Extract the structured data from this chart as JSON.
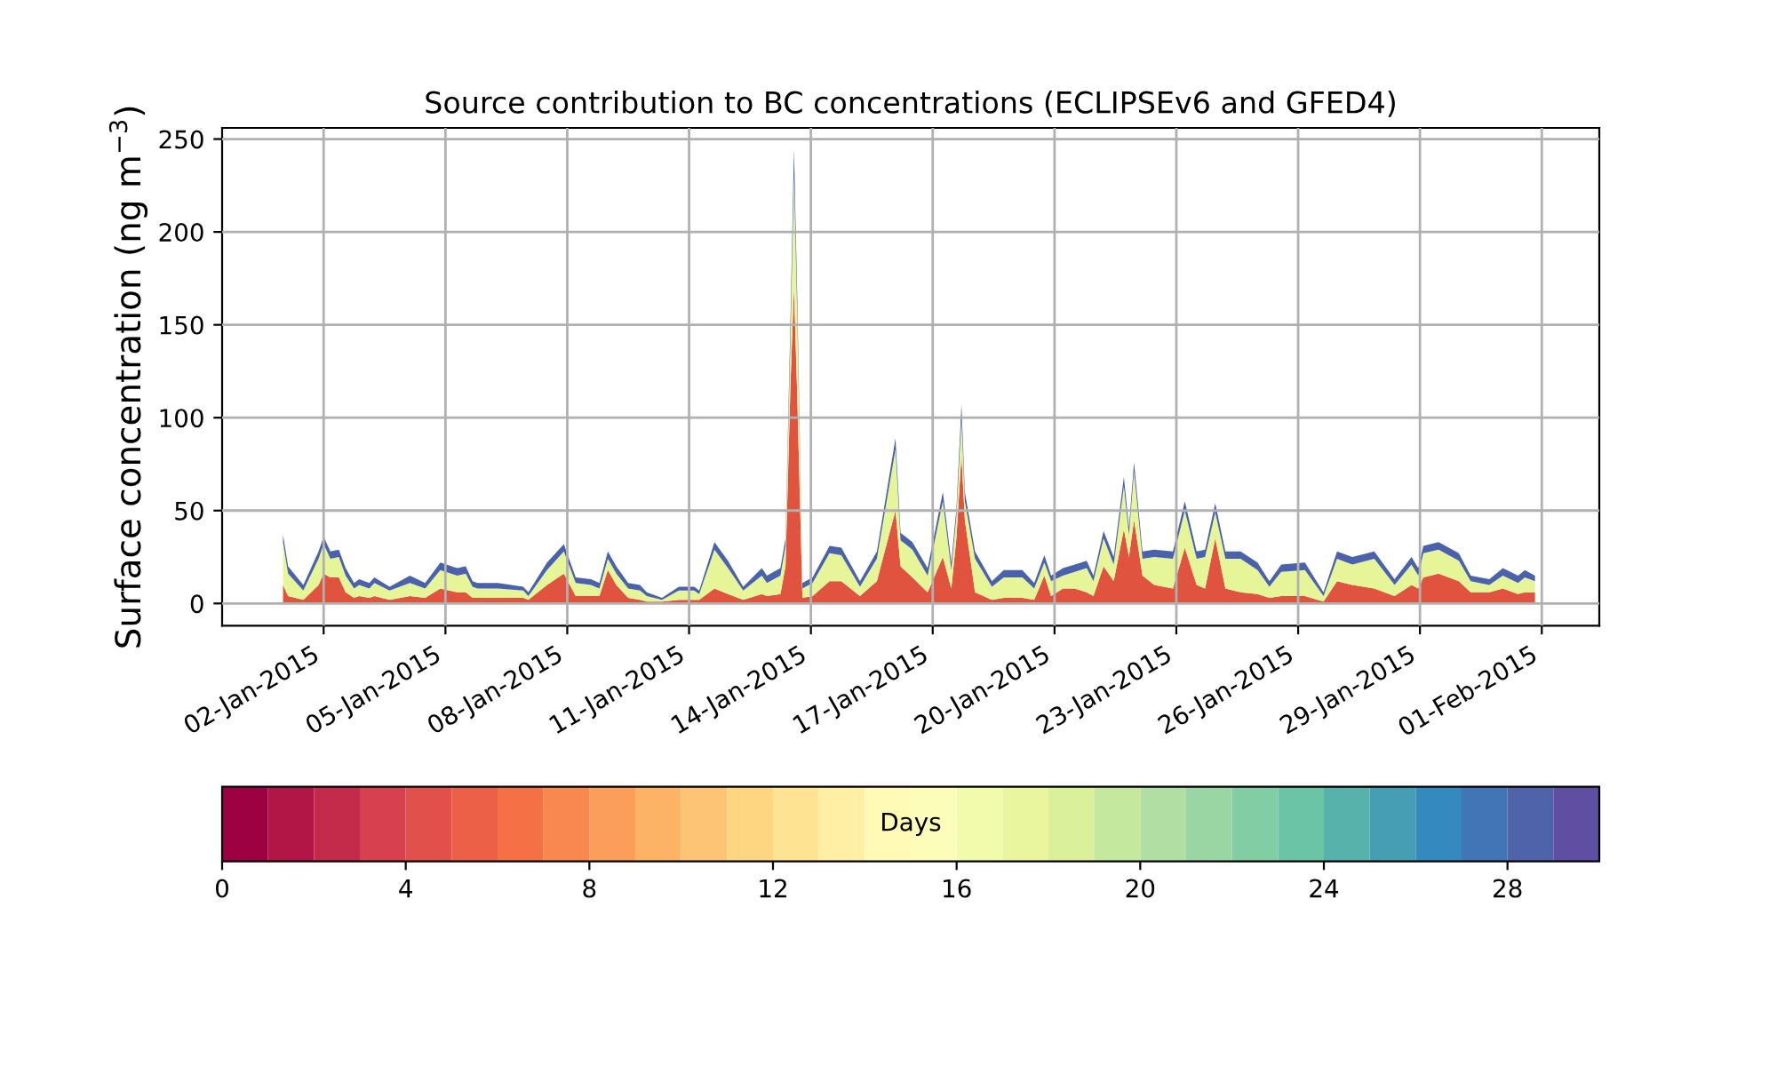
{
  "chart_data": {
    "type": "area",
    "stacked": true,
    "title": "Source contribution to BC concentrations (ECLIPSEv6 and GFED4)",
    "ylabel": "Surface concentration (ng m$^{−3}$)",
    "clabel": "Days",
    "x": [
      "2015-01-01T00:00",
      "2015-01-01T03:00",
      "2015-01-01T12:00",
      "2015-01-01T21:00",
      "2015-01-02T00:00",
      "2015-01-02T04:00",
      "2015-01-02T09:00",
      "2015-01-02T13:00",
      "2015-01-02T18:00",
      "2015-01-02T21:00",
      "2015-01-03T03:00",
      "2015-01-03T06:00",
      "2015-01-03T15:00",
      "2015-01-04T03:00",
      "2015-01-04T12:00",
      "2015-01-04T21:00",
      "2015-01-05T07:00",
      "2015-01-05T12:00",
      "2015-01-05T16:00",
      "2015-01-05T19:00",
      "2015-01-06T07:00",
      "2015-01-06T22:00",
      "2015-01-07T01:00",
      "2015-01-07T12:00",
      "2015-01-07T22:00",
      "2015-01-08T05:00",
      "2015-01-08T14:00",
      "2015-01-08T19:00",
      "2015-01-09T00:00",
      "2015-01-09T05:00",
      "2015-01-09T12:00",
      "2015-01-09T19:00",
      "2015-01-09T23:00",
      "2015-01-10T08:00",
      "2015-01-10T18:00",
      "2015-01-11T03:00",
      "2015-01-11T06:00",
      "2015-01-11T15:00",
      "2015-01-11T23:00",
      "2015-01-12T08:00",
      "2015-01-12T19:00",
      "2015-01-12T22:00",
      "2015-01-13T06:00",
      "2015-01-13T09:00",
      "2015-01-13T12:00",
      "2015-01-13T14:00",
      "2015-01-13T16:00",
      "2015-01-13T19:00",
      "2015-01-14T01:00",
      "2015-01-14T11:00",
      "2015-01-14T18:00",
      "2015-01-15T05:00",
      "2015-01-15T15:00",
      "2015-01-16T02:00",
      "2015-01-16T05:00",
      "2015-01-16T12:00",
      "2015-01-16T21:00",
      "2015-01-17T06:00",
      "2015-01-17T11:00",
      "2015-01-17T14:00",
      "2015-01-17T17:00",
      "2015-01-17T19:00",
      "2015-01-18T01:00",
      "2015-01-18T11:00",
      "2015-01-18T18:00",
      "2015-01-19T05:00",
      "2015-01-19T12:00",
      "2015-01-19T18:00",
      "2015-01-19T22:00",
      "2015-01-20T05:00",
      "2015-01-20T12:00",
      "2015-01-20T19:00",
      "2015-01-20T23:00",
      "2015-01-21T05:00",
      "2015-01-21T11:00",
      "2015-01-21T17:00",
      "2015-01-21T20:00",
      "2015-01-21T23:00",
      "2015-01-22T04:00",
      "2015-01-22T11:00",
      "2015-01-22T22:00",
      "2015-01-23T05:00",
      "2015-01-23T12:00",
      "2015-01-23T17:00",
      "2015-01-23T23:00",
      "2015-01-24T05:00",
      "2015-01-24T14:00",
      "2015-01-25T00:00",
      "2015-01-25T07:00",
      "2015-01-25T14:00",
      "2015-01-26T04:00",
      "2015-01-26T15:00",
      "2015-01-26T23:00",
      "2015-01-27T08:00",
      "2015-01-27T21:00",
      "2015-01-28T09:00",
      "2015-01-28T19:00",
      "2015-01-28T23:00",
      "2015-01-29T02:00",
      "2015-01-29T11:00",
      "2015-01-29T23:00",
      "2015-01-30T06:00",
      "2015-01-30T17:00",
      "2015-01-31T01:00",
      "2015-01-31T10:00",
      "2015-01-31T14:00",
      "2015-01-31T20:00"
    ],
    "series": [
      {
        "color": "#e0533f",
        "values": [
          10,
          4,
          2,
          10,
          16,
          14,
          14,
          6,
          3,
          4,
          3,
          4,
          2,
          4,
          3,
          8,
          6,
          6,
          3,
          3,
          3,
          3,
          2,
          10,
          16,
          4,
          4,
          4,
          18,
          10,
          3,
          2,
          1,
          1,
          2,
          2,
          2,
          8,
          5,
          2,
          5,
          4,
          5,
          20,
          120,
          170,
          110,
          3,
          4,
          12,
          12,
          4,
          12,
          50,
          20,
          14,
          6,
          25,
          8,
          35,
          80,
          45,
          6,
          2,
          3,
          3,
          2,
          15,
          4,
          8,
          8,
          6,
          4,
          20,
          12,
          40,
          25,
          45,
          15,
          10,
          8,
          30,
          10,
          8,
          35,
          8,
          6,
          5,
          3,
          4,
          4,
          1,
          12,
          10,
          8,
          4,
          10,
          8,
          14,
          16,
          12,
          6,
          6,
          8,
          5,
          6,
          6
        ]
      },
      {
        "color": "#e6f598",
        "values": [
          23,
          12,
          5,
          14,
          16,
          10,
          11,
          9,
          5,
          6,
          5,
          7,
          5,
          7,
          5,
          10,
          9,
          10,
          6,
          5,
          5,
          4,
          2,
          8,
          12,
          7,
          6,
          4,
          6,
          6,
          5,
          5,
          3,
          1,
          5,
          5,
          3,
          21,
          14,
          5,
          10,
          7,
          10,
          11,
          26,
          60,
          43,
          5,
          7,
          15,
          14,
          5,
          12,
          33,
          14,
          15,
          9,
          30,
          10,
          12,
          19,
          10,
          18,
          7,
          11,
          11,
          6,
          7,
          8,
          7,
          9,
          13,
          8,
          15,
          9,
          23,
          12,
          26,
          9,
          15,
          16,
          20,
          14,
          17,
          14,
          16,
          18,
          13,
          6,
          13,
          14,
          3,
          12,
          11,
          16,
          6,
          11,
          7,
          13,
          13,
          11,
          6,
          4,
          7,
          6,
          8,
          6
        ]
      },
      {
        "color": "#4a62ab",
        "values": [
          4,
          4,
          3,
          4,
          4,
          4,
          4,
          4,
          3,
          3,
          3,
          3,
          2,
          4,
          3,
          4,
          4,
          4,
          3,
          3,
          3,
          2,
          2,
          4,
          4,
          3,
          3,
          3,
          4,
          4,
          3,
          3,
          2,
          1,
          2,
          2,
          2,
          4,
          4,
          2,
          4,
          4,
          4,
          4,
          10,
          15,
          10,
          3,
          3,
          4,
          4,
          3,
          4,
          6,
          4,
          4,
          4,
          5,
          4,
          4,
          8,
          5,
          4,
          3,
          4,
          4,
          3,
          4,
          3,
          4,
          4,
          4,
          3,
          4,
          4,
          5,
          4,
          5,
          4,
          4,
          4,
          5,
          4,
          4,
          5,
          4,
          4,
          4,
          3,
          4,
          4,
          2,
          4,
          4,
          4,
          3,
          4,
          4,
          4,
          4,
          4,
          3,
          3,
          4,
          4,
          4,
          3
        ]
      }
    ],
    "xlim": [
      "2014-12-30T12:00",
      "2015-02-02T10:00"
    ],
    "xticks": [
      {
        "value": "2015-01-02",
        "label": "02-Jan-2015"
      },
      {
        "value": "2015-01-05",
        "label": "05-Jan-2015"
      },
      {
        "value": "2015-01-08",
        "label": "08-Jan-2015"
      },
      {
        "value": "2015-01-11",
        "label": "11-Jan-2015"
      },
      {
        "value": "2015-01-14",
        "label": "14-Jan-2015"
      },
      {
        "value": "2015-01-17",
        "label": "17-Jan-2015"
      },
      {
        "value": "2015-01-20",
        "label": "20-Jan-2015"
      },
      {
        "value": "2015-01-23",
        "label": "23-Jan-2015"
      },
      {
        "value": "2015-01-26",
        "label": "26-Jan-2015"
      },
      {
        "value": "2015-01-29",
        "label": "29-Jan-2015"
      },
      {
        "value": "2015-02-01",
        "label": "01-Feb-2015"
      }
    ],
    "ylim": [
      -12,
      256
    ],
    "yticks": [
      0,
      50,
      100,
      150,
      200,
      250
    ],
    "clim": [
      0,
      30
    ],
    "cticks": [
      0,
      4,
      8,
      12,
      16,
      20,
      24,
      28
    ],
    "grid": true
  }
}
